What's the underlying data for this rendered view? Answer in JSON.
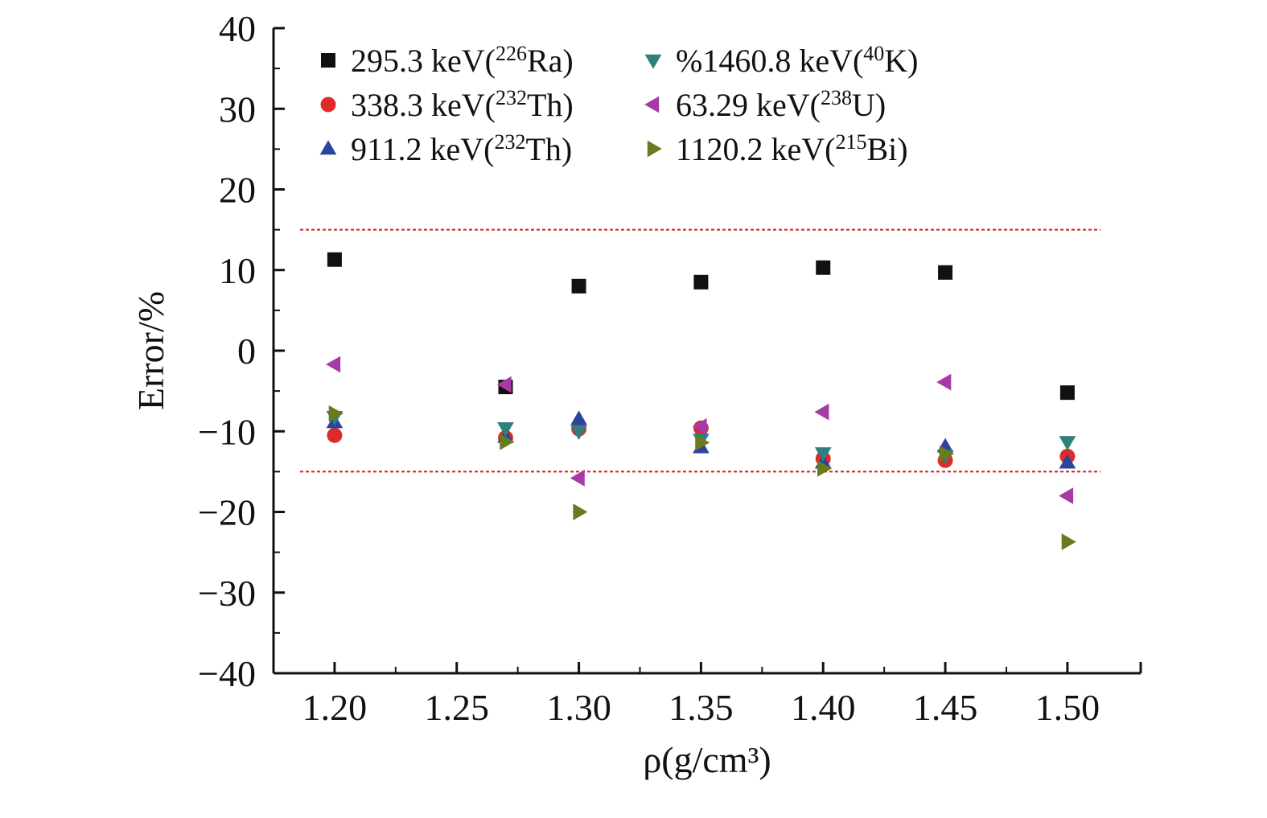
{
  "chart_data": {
    "type": "scatter",
    "title": "",
    "xlabel": "ρ(g/cm³)",
    "ylabel": "Error/%",
    "xlim": [
      1.175,
      1.53
    ],
    "ylim": [
      -40,
      40
    ],
    "x_ticks": [
      "1.20",
      "1.25",
      "1.30",
      "1.35",
      "1.40",
      "1.45",
      "1.50"
    ],
    "x_tick_values": [
      1.2,
      1.25,
      1.3,
      1.35,
      1.4,
      1.45,
      1.5
    ],
    "y_ticks": [
      "40",
      "30",
      "20",
      "10",
      "0",
      "−10",
      "−20",
      "−30",
      "−40"
    ],
    "y_tick_values": [
      40,
      30,
      20,
      10,
      0,
      -10,
      -20,
      -30,
      -40
    ],
    "reference_lines": [
      15,
      -15
    ],
    "reference_line_color": "#cc2222",
    "grid": false,
    "legend_position": "top-left",
    "x": [
      1.2,
      1.27,
      1.3,
      1.35,
      1.4,
      1.45,
      1.5
    ],
    "series": [
      {
        "name": "295.3 keV(226Ra)",
        "label_parts": [
          "295.3 keV(",
          "226",
          "Ra)"
        ],
        "marker": "square",
        "color": "#111111",
        "values": [
          11.3,
          -4.5,
          8.0,
          8.5,
          10.3,
          9.7,
          -5.2
        ]
      },
      {
        "name": "338.3 keV(232Th)",
        "label_parts": [
          "338.3 keV(",
          "232",
          "Th)"
        ],
        "marker": "circle",
        "color": "#dd2a2a",
        "values": [
          -10.5,
          -10.8,
          -9.7,
          -9.6,
          -13.4,
          -13.6,
          -13.1
        ]
      },
      {
        "name": "911.2 keV(232Th)",
        "label_parts": [
          "911.2 keV(",
          "232",
          "Th)"
        ],
        "marker": "triangle-up",
        "color": "#2b44a0",
        "values": [
          -8.9,
          -10.7,
          -8.5,
          -12.0,
          -13.9,
          -11.9,
          -13.9
        ]
      },
      {
        "name": "%1460.8 keV(40K)",
        "label_parts": [
          "%1460.8 keV(",
          "40",
          "K)"
        ],
        "marker": "triangle-down",
        "color": "#2f7f7a",
        "values": [
          -8.2,
          -9.6,
          -10.0,
          -11.0,
          -12.7,
          -13.0,
          -11.3
        ]
      },
      {
        "name": "63.29 keV(238U)",
        "label_parts": [
          "63.29 keV(",
          "238",
          "U)"
        ],
        "marker": "triangle-left",
        "color": "#a63aa6",
        "values": [
          -1.7,
          -4.2,
          -15.8,
          -9.4,
          -7.6,
          -3.9,
          -18.0
        ]
      },
      {
        "name": "1120.2 keV(215Bi)",
        "label_parts": [
          "1120.2 keV(",
          "215",
          "Bi)"
        ],
        "marker": "triangle-right",
        "color": "#6b7a1f",
        "values": [
          -7.8,
          -11.3,
          -20.0,
          -11.4,
          -14.6,
          -12.8,
          -23.7
        ]
      }
    ]
  }
}
